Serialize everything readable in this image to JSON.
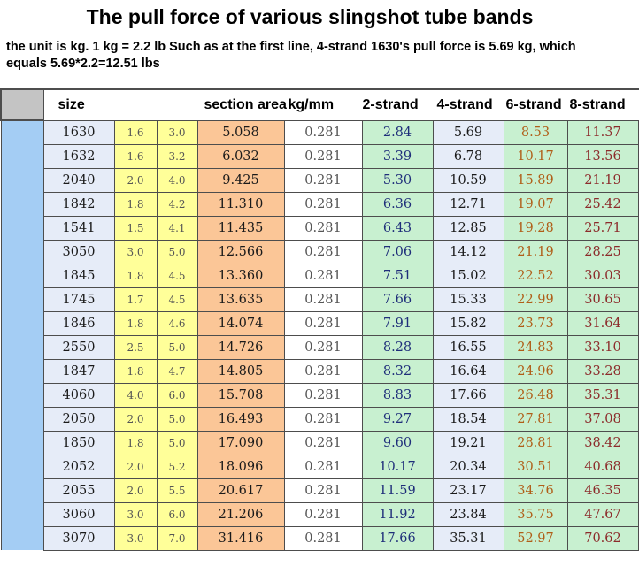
{
  "title": "The pull force of various slingshot tube bands",
  "note": "the unit is kg.  1 kg = 2.2 lb   Such as at the first line, 4-strand 1630's pull force is 5.69 kg, which equals 5.69*2.2=12.51 lbs",
  "headers": {
    "size": "size",
    "section_area": "section area",
    "kg_mm": "kg/mm",
    "strand2": "2-strand",
    "strand4": "4-strand",
    "strand6": "6-strand",
    "strand8": "8-strand"
  },
  "rows": [
    {
      "size": "1630",
      "a": "1.6",
      "b": "3.0",
      "area": "5.058",
      "kgmm": "0.281",
      "s2": "2.84",
      "s4": "5.69",
      "s6": "8.53",
      "s8": "11.37"
    },
    {
      "size": "1632",
      "a": "1.6",
      "b": "3.2",
      "area": "6.032",
      "kgmm": "0.281",
      "s2": "3.39",
      "s4": "6.78",
      "s6": "10.17",
      "s8": "13.56"
    },
    {
      "size": "2040",
      "a": "2.0",
      "b": "4.0",
      "area": "9.425",
      "kgmm": "0.281",
      "s2": "5.30",
      "s4": "10.59",
      "s6": "15.89",
      "s8": "21.19"
    },
    {
      "size": "1842",
      "a": "1.8",
      "b": "4.2",
      "area": "11.310",
      "kgmm": "0.281",
      "s2": "6.36",
      "s4": "12.71",
      "s6": "19.07",
      "s8": "25.42"
    },
    {
      "size": "1541",
      "a": "1.5",
      "b": "4.1",
      "area": "11.435",
      "kgmm": "0.281",
      "s2": "6.43",
      "s4": "12.85",
      "s6": "19.28",
      "s8": "25.71"
    },
    {
      "size": "3050",
      "a": "3.0",
      "b": "5.0",
      "area": "12.566",
      "kgmm": "0.281",
      "s2": "7.06",
      "s4": "14.12",
      "s6": "21.19",
      "s8": "28.25"
    },
    {
      "size": "1845",
      "a": "1.8",
      "b": "4.5",
      "area": "13.360",
      "kgmm": "0.281",
      "s2": "7.51",
      "s4": "15.02",
      "s6": "22.52",
      "s8": "30.03"
    },
    {
      "size": "1745",
      "a": "1.7",
      "b": "4.5",
      "area": "13.635",
      "kgmm": "0.281",
      "s2": "7.66",
      "s4": "15.33",
      "s6": "22.99",
      "s8": "30.65"
    },
    {
      "size": "1846",
      "a": "1.8",
      "b": "4.6",
      "area": "14.074",
      "kgmm": "0.281",
      "s2": "7.91",
      "s4": "15.82",
      "s6": "23.73",
      "s8": "31.64"
    },
    {
      "size": "2550",
      "a": "2.5",
      "b": "5.0",
      "area": "14.726",
      "kgmm": "0.281",
      "s2": "8.28",
      "s4": "16.55",
      "s6": "24.83",
      "s8": "33.10"
    },
    {
      "size": "1847",
      "a": "1.8",
      "b": "4.7",
      "area": "14.805",
      "kgmm": "0.281",
      "s2": "8.32",
      "s4": "16.64",
      "s6": "24.96",
      "s8": "33.28"
    },
    {
      "size": "4060",
      "a": "4.0",
      "b": "6.0",
      "area": "15.708",
      "kgmm": "0.281",
      "s2": "8.83",
      "s4": "17.66",
      "s6": "26.48",
      "s8": "35.31"
    },
    {
      "size": "2050",
      "a": "2.0",
      "b": "5.0",
      "area": "16.493",
      "kgmm": "0.281",
      "s2": "9.27",
      "s4": "18.54",
      "s6": "27.81",
      "s8": "37.08"
    },
    {
      "size": "1850",
      "a": "1.8",
      "b": "5.0",
      "area": "17.090",
      "kgmm": "0.281",
      "s2": "9.60",
      "s4": "19.21",
      "s6": "28.81",
      "s8": "38.42"
    },
    {
      "size": "2052",
      "a": "2.0",
      "b": "5.2",
      "area": "18.096",
      "kgmm": "0.281",
      "s2": "10.17",
      "s4": "20.34",
      "s6": "30.51",
      "s8": "40.68"
    },
    {
      "size": "2055",
      "a": "2.0",
      "b": "5.5",
      "area": "20.617",
      "kgmm": "0.281",
      "s2": "11.59",
      "s4": "23.17",
      "s6": "34.76",
      "s8": "46.35"
    },
    {
      "size": "3060",
      "a": "3.0",
      "b": "6.0",
      "area": "21.206",
      "kgmm": "0.281",
      "s2": "11.92",
      "s4": "23.84",
      "s6": "35.75",
      "s8": "47.67"
    },
    {
      "size": "3070",
      "a": "3.0",
      "b": "7.0",
      "area": "31.416",
      "kgmm": "0.281",
      "s2": "17.66",
      "s4": "35.31",
      "s6": "52.97",
      "s8": "70.62"
    }
  ]
}
